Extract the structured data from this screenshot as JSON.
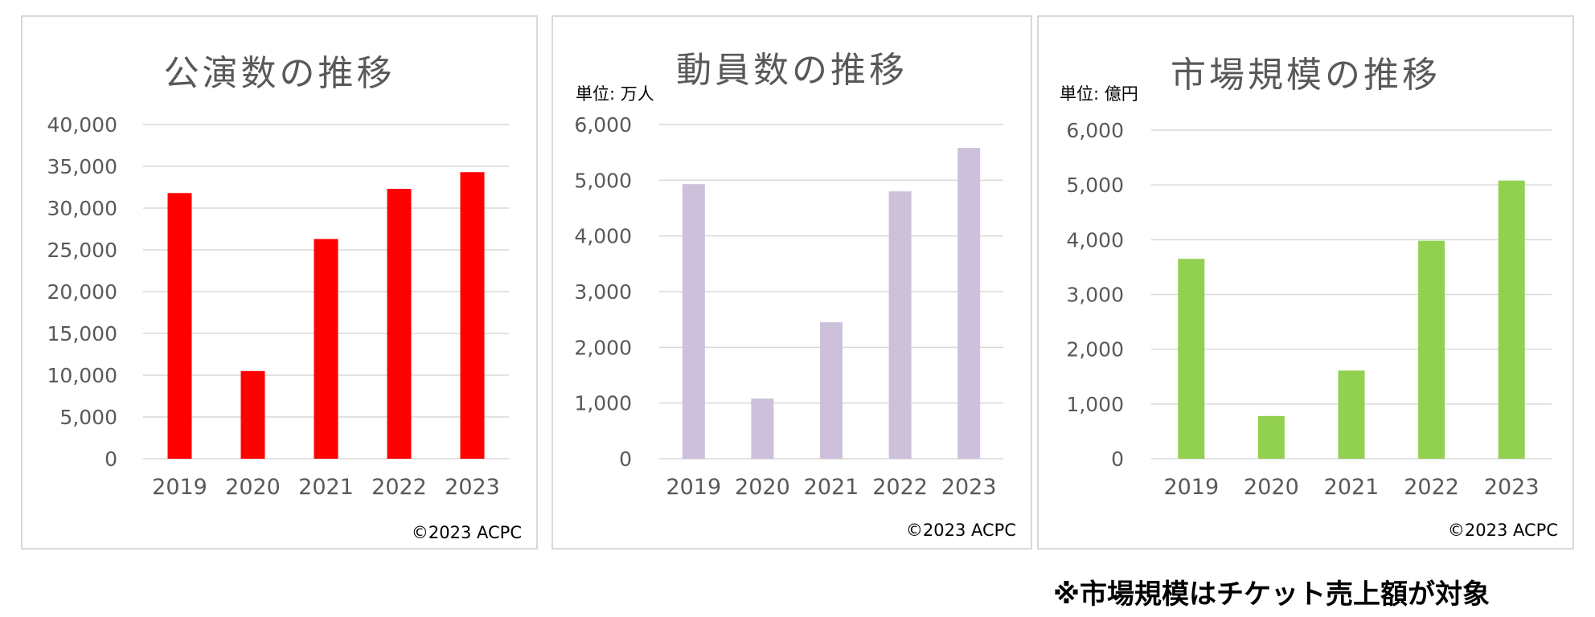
{
  "chart_data": [
    {
      "type": "bar",
      "title": "公演数の推移",
      "unit_label": "",
      "categories": [
        "2019",
        "2020",
        "2021",
        "2022",
        "2023"
      ],
      "values": [
        31800,
        10500,
        26300,
        32300,
        34300
      ],
      "ylim": [
        0,
        40000
      ],
      "yticks": [
        "0",
        "5,000",
        "10,000",
        "15,000",
        "20,000",
        "25,000",
        "30,000",
        "35,000",
        "40,000"
      ],
      "color": "#ff0000",
      "grid": true,
      "copyright": "©2023 ACPC"
    },
    {
      "type": "bar",
      "title": "動員数の推移",
      "unit_label": "単位: 万人",
      "categories": [
        "2019",
        "2020",
        "2021",
        "2022",
        "2023"
      ],
      "values": [
        4930,
        1080,
        2450,
        4800,
        5580
      ],
      "ylim": [
        0,
        6000
      ],
      "yticks": [
        "0",
        "1,000",
        "2,000",
        "3,000",
        "4,000",
        "5,000",
        "6,000"
      ],
      "color": "#ccc0da",
      "grid": true,
      "copyright": "©2023 ACPC"
    },
    {
      "type": "bar",
      "title": "市場規模の推移",
      "unit_label": "単位: 億円",
      "categories": [
        "2019",
        "2020",
        "2021",
        "2022",
        "2023"
      ],
      "values": [
        3650,
        780,
        1610,
        3980,
        5080
      ],
      "ylim": [
        0,
        6000
      ],
      "yticks": [
        "0",
        "1,000",
        "2,000",
        "3,000",
        "4,000",
        "5,000",
        "6,000"
      ],
      "color": "#92d050",
      "grid": true,
      "copyright": "©2023 ACPC"
    }
  ],
  "footnote": "※市場規模はチケット売上額が対象"
}
